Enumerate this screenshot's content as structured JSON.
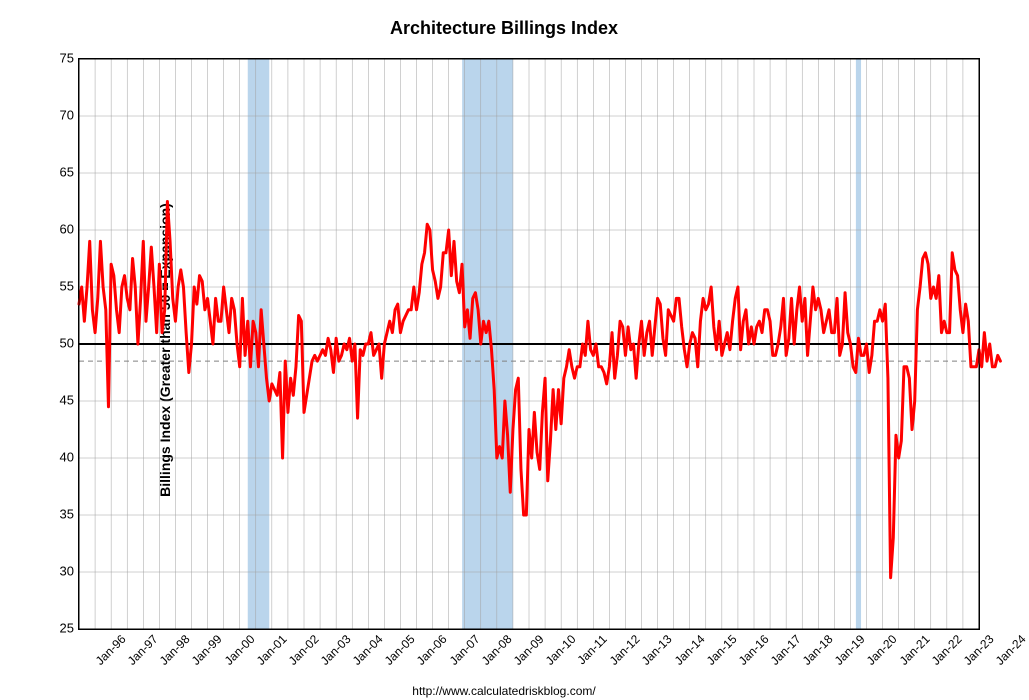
{
  "chart": {
    "type": "line",
    "title": "Architecture Billings Index",
    "ylabel": "Billings Index (Greater than 50 = Expansion)",
    "footer": "http://www.calculatedriskblog.com/",
    "title_fontsize": 18,
    "label_fontsize": 14,
    "tick_fontsize": 13,
    "background_color": "#ffffff",
    "grid_color": "#a0a0a0",
    "grid_width": 0.5,
    "line_color": "#ff0000",
    "line_width": 3,
    "ref_line_color": "#000000",
    "ref_line_value": 50,
    "ref_line_width": 2,
    "dashed_line_color": "#808080",
    "dashed_line_value": 48.5,
    "recession_color": "#9cc3e4",
    "recession_opacity": 0.7,
    "ylim": [
      25,
      75
    ],
    "ytick_step": 5,
    "yticks": [
      25,
      30,
      35,
      40,
      45,
      50,
      55,
      60,
      65,
      70,
      75
    ],
    "x_start_year": 1996,
    "x_end_year": 2024,
    "xtick_labels": [
      "Jan-96",
      "Jan-97",
      "Jan-98",
      "Jan-99",
      "Jan-00",
      "Jan-01",
      "Jan-02",
      "Jan-03",
      "Jan-04",
      "Jan-05",
      "Jan-06",
      "Jan-07",
      "Jan-08",
      "Jan-09",
      "Jan-10",
      "Jan-11",
      "Jan-12",
      "Jan-13",
      "Jan-14",
      "Jan-15",
      "Jan-16",
      "Jan-17",
      "Jan-18",
      "Jan-19",
      "Jan-20",
      "Jan-21",
      "Jan-22",
      "Jan-23",
      "Jan-24"
    ],
    "recessions": [
      {
        "start": 2001.25,
        "end": 2001.92
      },
      {
        "start": 2007.92,
        "end": 2009.5
      },
      {
        "start": 2020.17,
        "end": 2020.33
      }
    ],
    "values": [
      53.5,
      55,
      52,
      55,
      59,
      53,
      51,
      54,
      59,
      55,
      53,
      44.5,
      57,
      56,
      53,
      51,
      55,
      56,
      54,
      53,
      57.5,
      55,
      50,
      54,
      59,
      52,
      55,
      58.5,
      55,
      51,
      57,
      51,
      53,
      62.5,
      59,
      54,
      52,
      55,
      56.5,
      55,
      51,
      47.5,
      50,
      55,
      53.5,
      56,
      55.5,
      53,
      54,
      52,
      50,
      54,
      52,
      52,
      55,
      53,
      51,
      54,
      53,
      50,
      48,
      54,
      49,
      52,
      48,
      52,
      51,
      48,
      53,
      50,
      47,
      45,
      46.5,
      46,
      45.5,
      47.5,
      40,
      48.5,
      44,
      47,
      45.5,
      48,
      52.5,
      52,
      44,
      45.5,
      47,
      48.5,
      49,
      48.5,
      49,
      49.5,
      49,
      50.5,
      49.5,
      47.5,
      50.5,
      48.5,
      49,
      50,
      49.5,
      50.5,
      48.5,
      50,
      43.5,
      49.5,
      49,
      50,
      50,
      51,
      49,
      49.5,
      50,
      47,
      50,
      51,
      52,
      51,
      53,
      53.5,
      51,
      52,
      52.5,
      53,
      53,
      55,
      53,
      54.5,
      57,
      58,
      60.5,
      60,
      56.5,
      55.5,
      54,
      55,
      58,
      58,
      60,
      56,
      59,
      55.5,
      54.5,
      57,
      51.5,
      53,
      50.5,
      54,
      54.5,
      53,
      50,
      52,
      51,
      52,
      49.5,
      46,
      40,
      41,
      40,
      45,
      42,
      37,
      42.5,
      46,
      47,
      39,
      35,
      35,
      42.5,
      40,
      44,
      40.5,
      39,
      44,
      47,
      38,
      41.5,
      46,
      42.5,
      46,
      43,
      47,
      48,
      49.5,
      48,
      47,
      48,
      48,
      50,
      49,
      52,
      49.5,
      49,
      50,
      48,
      48,
      47.5,
      46.5,
      48,
      51,
      47,
      49,
      52,
      51.5,
      49,
      51.5,
      49.5,
      50,
      47,
      50,
      52,
      49,
      51,
      52,
      49,
      51.5,
      54,
      53.5,
      50.5,
      49,
      53,
      52.5,
      52,
      54,
      54,
      51.5,
      49.5,
      48,
      50,
      51,
      50.5,
      48,
      52,
      54,
      53,
      53.5,
      55,
      51.5,
      49.5,
      52,
      49,
      50,
      51,
      49.5,
      52,
      54,
      55,
      49.5,
      52,
      53,
      50,
      51.5,
      50,
      51.5,
      52,
      51,
      53,
      53,
      52,
      49,
      49,
      50,
      51.5,
      54,
      49,
      50.5,
      54,
      50,
      53,
      55,
      52,
      54,
      49,
      52,
      55,
      53,
      54,
      53,
      51,
      52,
      53,
      51,
      51,
      54,
      49,
      50,
      54.5,
      51,
      50,
      48,
      47.5,
      50.5,
      49,
      49,
      50,
      47.5,
      49,
      52,
      52,
      53,
      52,
      53.5,
      47,
      29.5,
      33,
      42,
      40,
      41.5,
      48,
      48,
      47,
      42.5,
      45,
      53,
      55,
      57.5,
      58,
      57,
      54,
      55,
      54,
      56,
      51,
      52,
      51,
      51,
      58,
      56.5,
      56,
      53,
      51,
      53.5,
      52,
      48,
      48,
      48,
      49.5,
      48,
      51,
      48.5,
      50,
      48,
      48,
      49,
      48.5
    ]
  }
}
